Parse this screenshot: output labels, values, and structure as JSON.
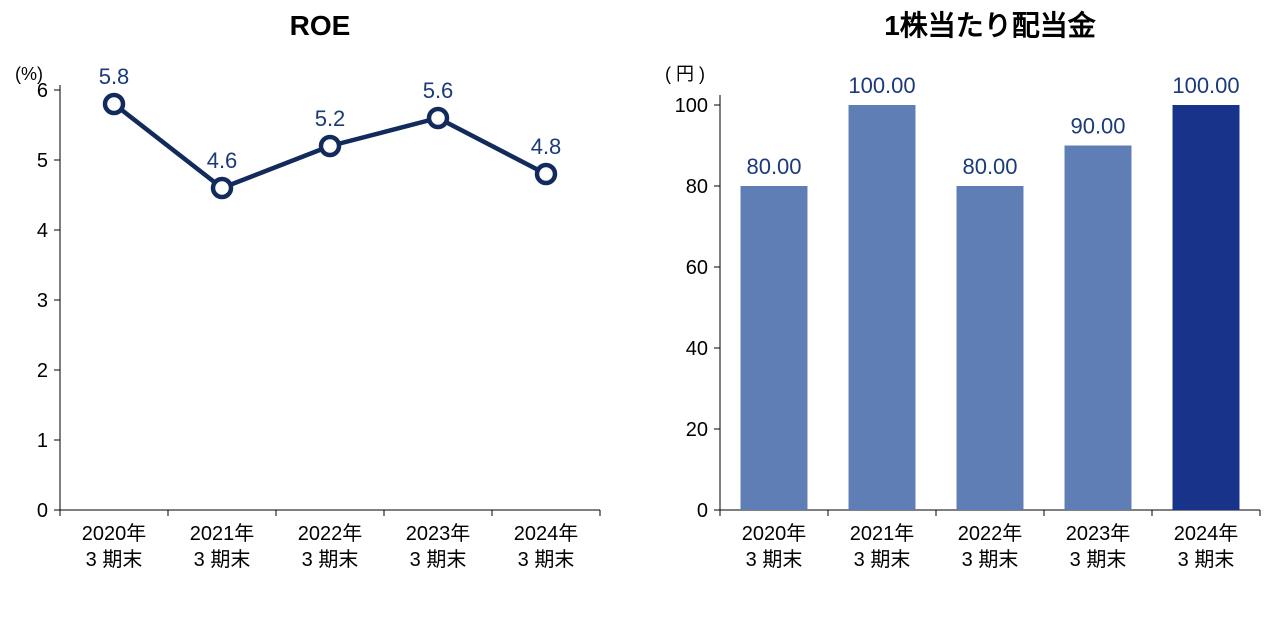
{
  "line_chart": {
    "type": "line",
    "title": "ROE",
    "title_fontsize": 28,
    "title_fontweight": 700,
    "axis_unit_label": "(%)",
    "axis_unit_fontsize": 18,
    "categories": [
      "2020年",
      "2021年",
      "2022年",
      "2023年",
      "2024年"
    ],
    "categories_sub": [
      "3 期末",
      "3 期末",
      "3 期末",
      "3 期末",
      "3 期末"
    ],
    "category_fontsize": 20,
    "values": [
      5.8,
      4.6,
      5.2,
      5.6,
      4.8
    ],
    "value_labels": [
      "5.8",
      "4.6",
      "5.2",
      "5.6",
      "4.8"
    ],
    "value_label_color": "#1a3a7a",
    "value_label_fontsize": 22,
    "line_color": "#122a5c",
    "line_width": 4.5,
    "marker_fill": "#ffffff",
    "marker_stroke": "#122a5c",
    "marker_stroke_width": 4.5,
    "marker_radius": 9,
    "ylim": [
      0,
      6
    ],
    "ytick_step": 1,
    "axis_color": "#000000",
    "tick_label_fontsize": 20,
    "background_color": "#ffffff"
  },
  "bar_chart": {
    "type": "bar",
    "title": "1株当たり配当金",
    "title_fontsize": 28,
    "title_fontweight": 700,
    "axis_unit_label": "( 円 )",
    "axis_unit_fontsize": 18,
    "categories": [
      "2020年",
      "2021年",
      "2022年",
      "2023年",
      "2024年"
    ],
    "categories_sub": [
      "3 期末",
      "3 期末",
      "3 期末",
      "3 期末",
      "3 期末"
    ],
    "category_fontsize": 20,
    "values": [
      80.0,
      100.0,
      80.0,
      90.0,
      100.0
    ],
    "value_labels": [
      "80.00",
      "100.00",
      "80.00",
      "90.00",
      "100.00"
    ],
    "value_label_color": "#1a3a7a",
    "value_label_fontsize": 22,
    "bar_colors": [
      "#5f7eb6",
      "#5f7eb6",
      "#5f7eb6",
      "#5f7eb6",
      "#17348a"
    ],
    "bar_width_ratio": 0.62,
    "ylim": [
      0,
      100
    ],
    "ytick_step": 20,
    "axis_color": "#000000",
    "tick_label_fontsize": 20,
    "background_color": "#ffffff"
  }
}
